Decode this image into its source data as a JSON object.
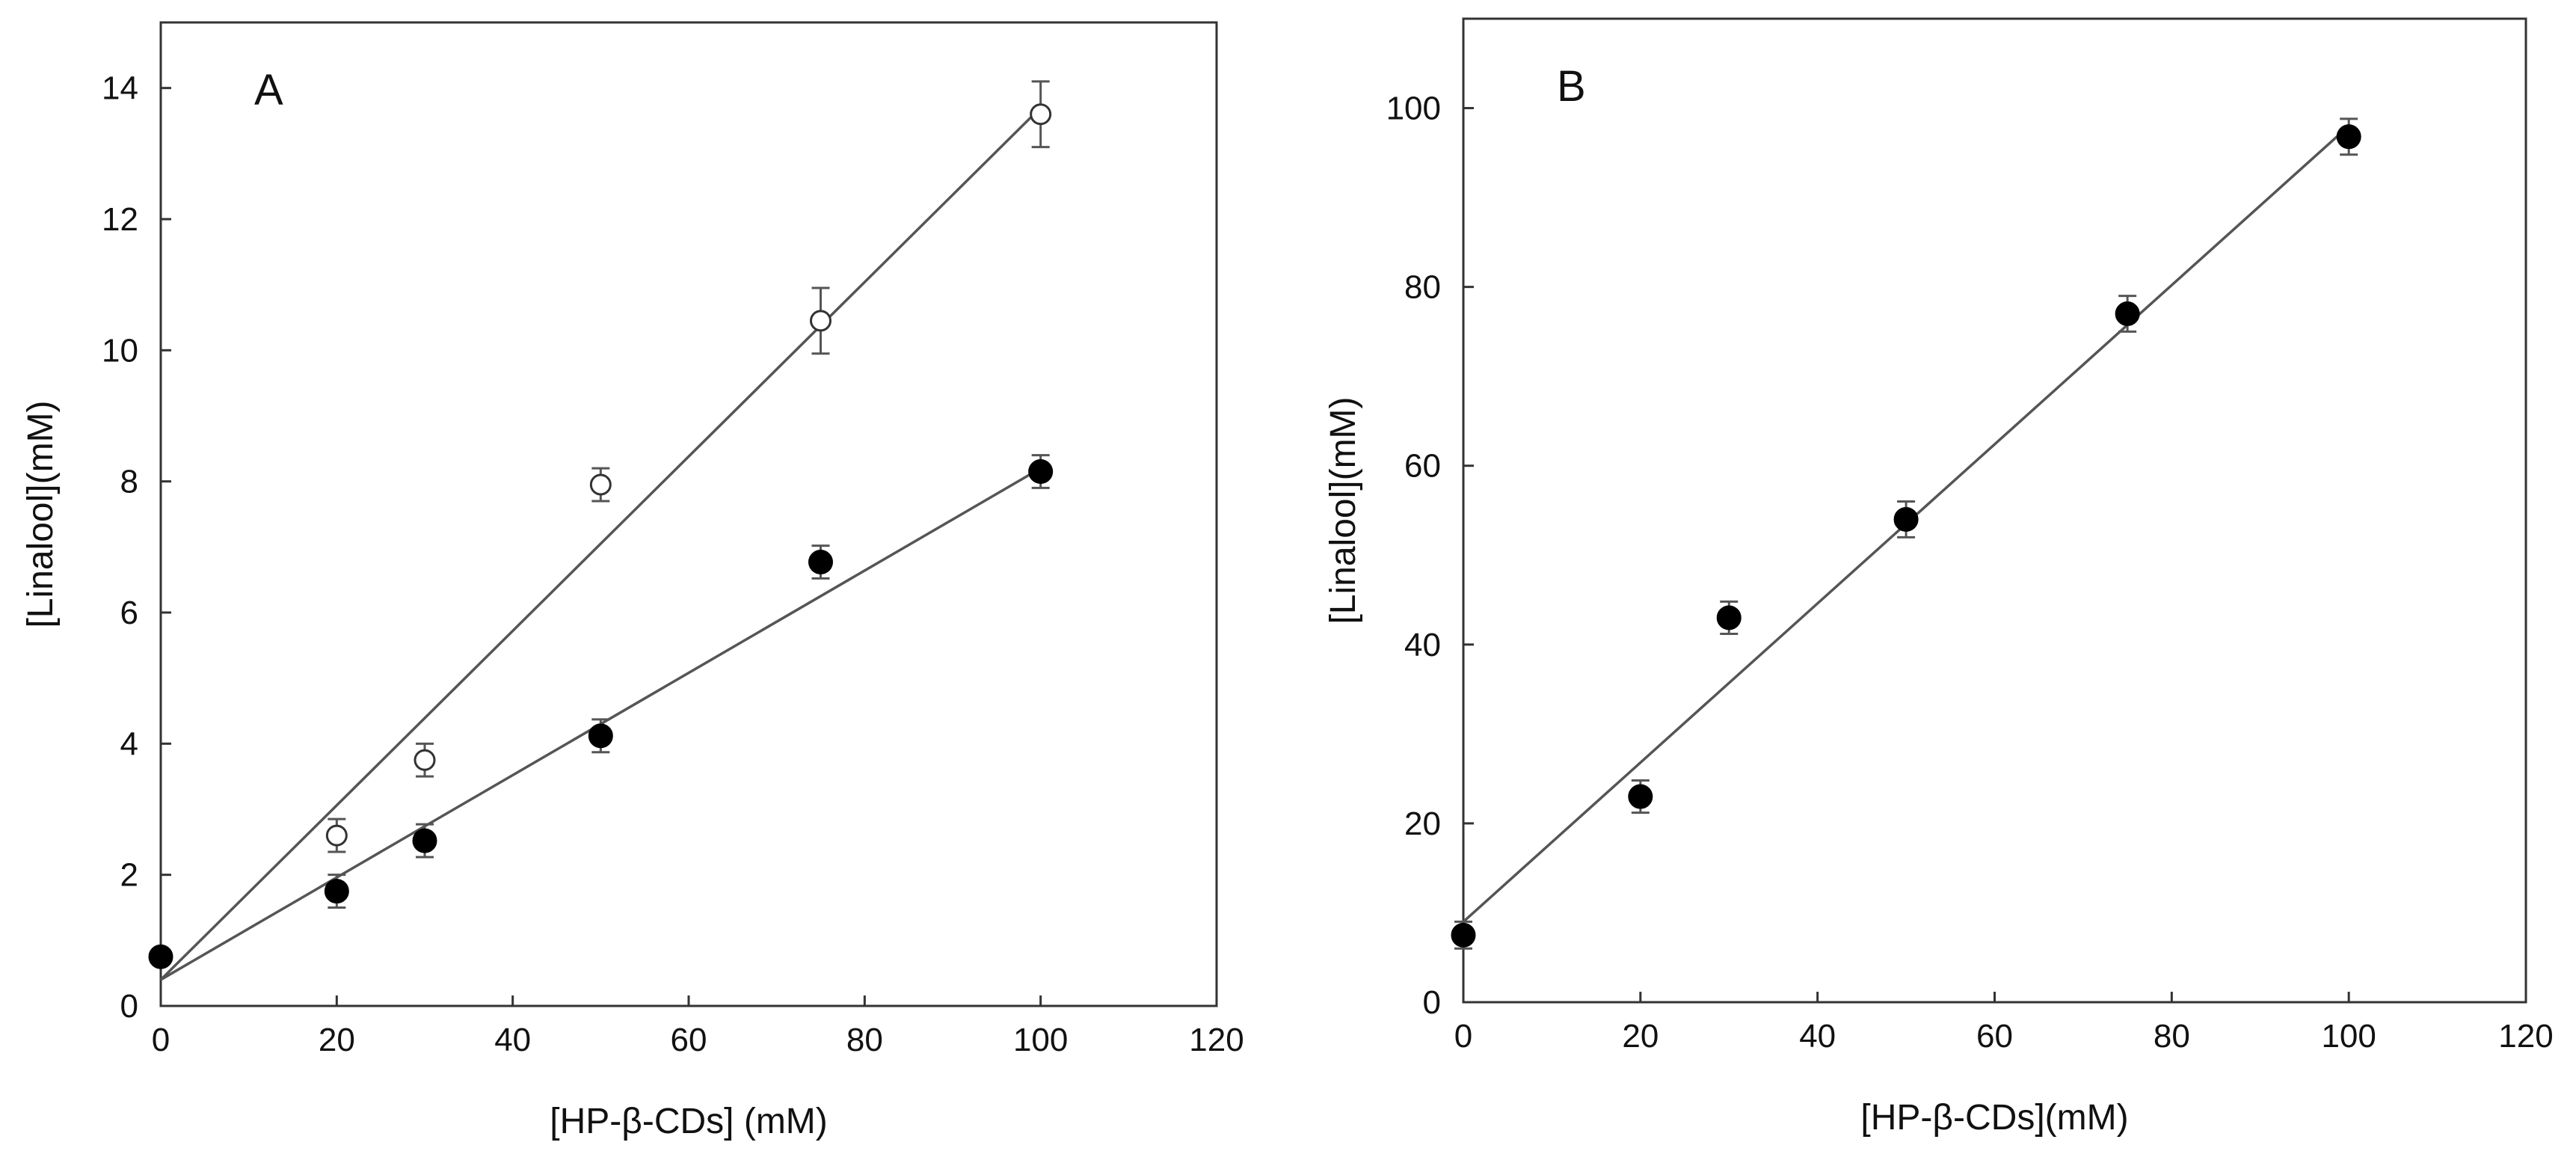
{
  "chart_data": [
    {
      "panel_label": "A",
      "type": "scatter",
      "xlabel": "[HP-β-CDs] (mM)",
      "ylabel": "[Linalool](mM)",
      "xlim": [
        0,
        120
      ],
      "ylim": [
        0,
        15
      ],
      "xticks": [
        0,
        20,
        40,
        60,
        80,
        100,
        120
      ],
      "yticks": [
        0,
        2,
        4,
        6,
        8,
        10,
        12,
        14
      ],
      "grid": false,
      "series": [
        {
          "name": "open",
          "marker": "open-circle",
          "x": [
            0,
            20,
            30,
            50,
            75,
            100
          ],
          "y": [
            0.75,
            2.6,
            3.75,
            7.95,
            10.45,
            13.6
          ],
          "err": [
            0.1,
            0.25,
            0.25,
            0.25,
            0.5,
            0.5
          ],
          "fit": {
            "intercept": 0.4,
            "slope": 0.133
          }
        },
        {
          "name": "filled",
          "marker": "filled-circle",
          "x": [
            0,
            20,
            30,
            50,
            75,
            100
          ],
          "y": [
            0.75,
            1.75,
            2.52,
            4.12,
            6.77,
            8.15
          ],
          "err": [
            0.1,
            0.25,
            0.25,
            0.25,
            0.25,
            0.25
          ],
          "fit": {
            "intercept": 0.4,
            "slope": 0.078
          }
        }
      ]
    },
    {
      "panel_label": "B",
      "type": "scatter",
      "xlabel": "[HP-β-CDs](mM)",
      "ylabel": "[Linalool](mM)",
      "xlim": [
        0,
        120
      ],
      "ylim": [
        0,
        110
      ],
      "xticks": [
        0,
        20,
        40,
        60,
        80,
        100,
        120
      ],
      "yticks": [
        0,
        20,
        40,
        60,
        80,
        100
      ],
      "grid": false,
      "series": [
        {
          "name": "filled",
          "marker": "filled-circle",
          "x": [
            0,
            20,
            30,
            50,
            75,
            100
          ],
          "y": [
            7.5,
            23,
            43,
            54,
            77,
            96.8
          ],
          "err": [
            1.5,
            1.8,
            1.8,
            2,
            2,
            2
          ],
          "fit": {
            "intercept": 9,
            "slope": 0.89
          }
        }
      ]
    }
  ]
}
